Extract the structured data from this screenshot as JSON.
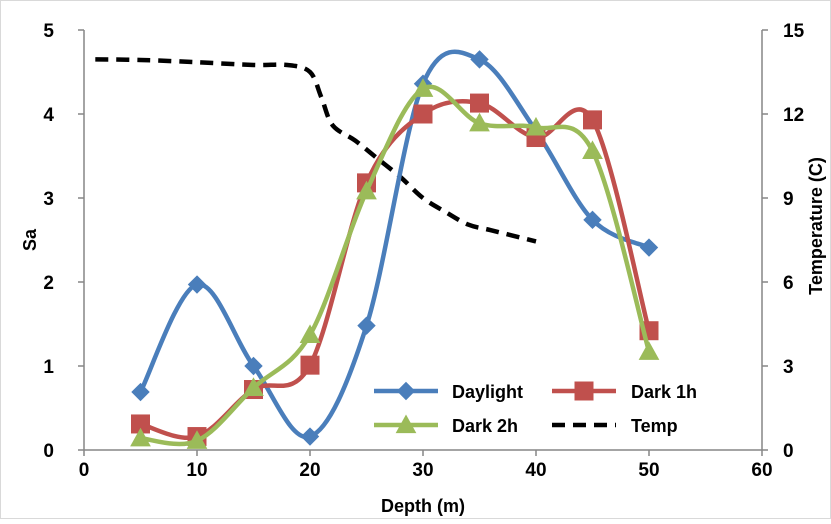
{
  "chart_data": {
    "type": "line",
    "xlabel": "Depth (m)",
    "ylabel": "Sa",
    "y2label": "Temperature (C)",
    "xlim": [
      0,
      60
    ],
    "ylim": [
      0,
      5
    ],
    "y2lim": [
      0,
      15
    ],
    "x_ticks": [
      "0",
      "10",
      "20",
      "30",
      "40",
      "50",
      "60"
    ],
    "y_ticks": [
      "0",
      "1",
      "2",
      "3",
      "4",
      "5"
    ],
    "y2_ticks": [
      "0",
      "3",
      "6",
      "9",
      "12",
      "15"
    ],
    "grid": false,
    "legend_position": "bottom-right",
    "series": [
      {
        "name": "Daylight",
        "axis": "left",
        "color": "#4a7ebb",
        "marker": "diamond",
        "x": [
          5,
          10,
          15,
          20,
          25,
          30,
          35,
          40,
          45,
          50
        ],
        "y": [
          0.69,
          1.97,
          1.0,
          0.16,
          1.48,
          4.36,
          4.65,
          3.8,
          2.74,
          2.41
        ]
      },
      {
        "name": "Dark 1h",
        "axis": "left",
        "color": "#c0504d",
        "marker": "square",
        "x": [
          5,
          10,
          15,
          20,
          25,
          30,
          35,
          40,
          45,
          50
        ],
        "y": [
          0.31,
          0.16,
          0.72,
          1.01,
          3.18,
          4.0,
          4.13,
          3.72,
          3.93,
          1.42
        ]
      },
      {
        "name": "Dark 2h",
        "axis": "left",
        "color": "#9bbb59",
        "marker": "triangle",
        "x": [
          5,
          10,
          15,
          20,
          25,
          30,
          35,
          40,
          45,
          50
        ],
        "y": [
          0.14,
          0.11,
          0.74,
          1.37,
          3.08,
          4.3,
          3.89,
          3.84,
          3.56,
          1.17
        ]
      },
      {
        "name": "Temp",
        "axis": "right",
        "color": "#000000",
        "dashed": true,
        "marker": "none",
        "x": [
          1,
          5,
          10,
          15,
          18,
          20,
          21,
          22,
          24,
          26,
          28,
          30,
          32,
          34,
          36,
          40
        ],
        "y": [
          13.95,
          13.93,
          13.85,
          13.75,
          13.75,
          13.5,
          12.6,
          11.6,
          11.05,
          10.4,
          9.75,
          9.0,
          8.5,
          8.05,
          7.85,
          7.45
        ]
      }
    ]
  }
}
